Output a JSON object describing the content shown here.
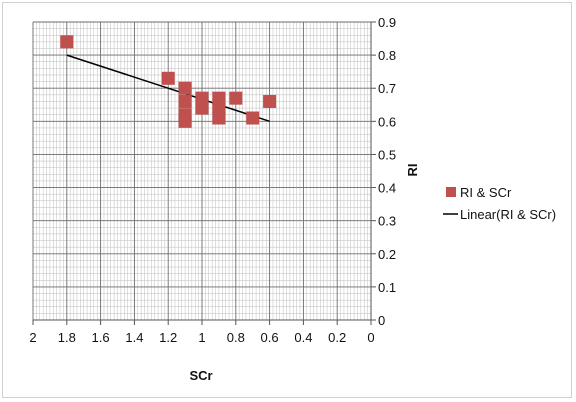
{
  "chart_data": {
    "type": "scatter",
    "title": "",
    "xlabel": "SCr",
    "ylabel": "RI",
    "xlim": [
      2,
      0
    ],
    "x_reversed": true,
    "ylim": [
      0,
      0.9
    ],
    "xticks": [
      "2",
      "1.8",
      "1.6",
      "1.4",
      "1.2",
      "1",
      "0.8",
      "0.6",
      "0.4",
      "0.2",
      "0"
    ],
    "yticks": [
      "0",
      "0.1",
      "0.2",
      "0.3",
      "0.4",
      "0.5",
      "0.6",
      "0.7",
      "0.8",
      "0.9"
    ],
    "y_axis_position": "right",
    "grid": true,
    "legend_position": "right",
    "series": [
      {
        "name": "RI & SCr",
        "color": "#c0504d",
        "marker": "square",
        "points": [
          {
            "x": 1.8,
            "y": 0.84
          },
          {
            "x": 1.2,
            "y": 0.73
          },
          {
            "x": 1.1,
            "y": 0.7
          },
          {
            "x": 1.1,
            "y": 0.66
          },
          {
            "x": 1.1,
            "y": 0.62
          },
          {
            "x": 1.1,
            "y": 0.6
          },
          {
            "x": 1.0,
            "y": 0.67
          },
          {
            "x": 1.0,
            "y": 0.64
          },
          {
            "x": 0.9,
            "y": 0.67
          },
          {
            "x": 0.9,
            "y": 0.64
          },
          {
            "x": 0.9,
            "y": 0.61
          },
          {
            "x": 0.8,
            "y": 0.67
          },
          {
            "x": 0.7,
            "y": 0.61
          },
          {
            "x": 0.6,
            "y": 0.66
          }
        ]
      }
    ],
    "trendline": {
      "name": "Linear(RI & SCr)",
      "color": "#000000",
      "points": [
        {
          "x": 1.8,
          "y": 0.8
        },
        {
          "x": 0.6,
          "y": 0.6
        }
      ]
    }
  }
}
